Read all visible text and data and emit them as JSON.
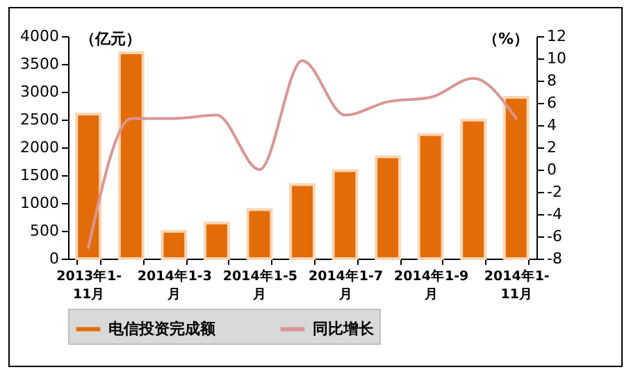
{
  "chart_data": {
    "type": "bar",
    "ylabel": "（亿元）",
    "y2label": "（%）",
    "categories": [
      "2013年1-11月",
      null,
      "2014年1-3月",
      null,
      "2014年1-5月",
      null,
      "2014年1-7月",
      null,
      "2014年1-9月",
      null,
      "2014年1-11月"
    ],
    "series": [
      {
        "name": "电信投资完成额",
        "color": "#e36c09",
        "values": [
          2600,
          3700,
          490,
          640,
          880,
          1330,
          1580,
          1830,
          2230,
          2490,
          2900
        ]
      },
      {
        "name": "同比增长",
        "type": "line",
        "axis": "y2",
        "color": "#d99694",
        "values": [
          -7,
          4.6,
          4.6,
          4.9,
          0,
          9.8,
          4.9,
          6.1,
          6.5,
          8.2,
          4.6
        ]
      }
    ],
    "ylim": [
      0,
      4000
    ],
    "yticks": [
      0,
      500,
      1000,
      1500,
      2000,
      2500,
      3000,
      3500,
      4000
    ],
    "y2lim": [
      -8,
      12
    ],
    "y2ticks": [
      -8,
      -6,
      -4,
      -2,
      0,
      2,
      4,
      6,
      8,
      10,
      12
    ],
    "grid": false,
    "legend": "bottom"
  }
}
